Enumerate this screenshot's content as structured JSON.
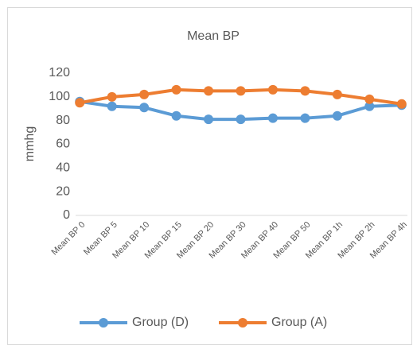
{
  "chart_data": {
    "type": "line",
    "title": "Mean BP",
    "y_label": "mmhg",
    "categories": [
      "Mean BP 0",
      "Mean BP 5",
      "Mean BP 10",
      "Mean BP 15",
      "Mean BP 20",
      "Mean BP 30",
      "Mean BP 40",
      "Mean BP 50",
      "Mean BP 1h",
      "Mean BP 2h",
      "Mean BP 4h"
    ],
    "series": [
      {
        "name": "Group (D)",
        "color": "#5b9bd5",
        "values": [
          96,
          92,
          91,
          84,
          81,
          81,
          82,
          82,
          84,
          92,
          93
        ]
      },
      {
        "name": "Group (A)",
        "color": "#ed7d31",
        "values": [
          95,
          100,
          102,
          106,
          105,
          105,
          106,
          105,
          102,
          98,
          94
        ]
      }
    ],
    "ylim": [
      0,
      120
    ],
    "yticks": [
      0,
      20,
      40,
      60,
      80,
      100,
      120
    ],
    "grid": false,
    "legend": "bottom"
  }
}
